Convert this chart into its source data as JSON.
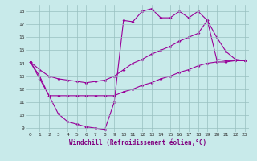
{
  "xlabel": "Windchill (Refroidissement éolien,°C)",
  "background_color": "#c8eaea",
  "line_color": "#990099",
  "grid_color": "#a0c8c8",
  "xmin": 0,
  "xmax": 23,
  "ymin": 9,
  "ymax": 18,
  "hours": [
    0,
    1,
    2,
    3,
    4,
    5,
    6,
    7,
    8,
    9,
    10,
    11,
    12,
    13,
    14,
    15,
    16,
    17,
    18,
    19,
    20,
    21,
    22,
    23
  ],
  "line_top": [
    14.1,
    12.8,
    11.5,
    10.1,
    9.5,
    9.3,
    9.1,
    9.0,
    8.9,
    11.0,
    17.3,
    17.2,
    18.0,
    18.2,
    17.5,
    17.5,
    18.0,
    17.5,
    18.0,
    17.3,
    16.0,
    14.9,
    14.3,
    14.2
  ],
  "line_upper_diag": [
    14.1,
    13.5,
    13.0,
    12.8,
    12.7,
    12.6,
    12.5,
    12.6,
    12.7,
    13.0,
    13.5,
    14.0,
    14.3,
    14.7,
    15.0,
    15.3,
    15.7,
    16.0,
    16.3,
    17.3,
    14.3,
    14.2,
    14.2,
    14.2
  ],
  "line_lower_diag": [
    14.1,
    13.0,
    11.5,
    11.5,
    11.5,
    11.5,
    11.5,
    11.5,
    11.5,
    11.5,
    11.8,
    12.0,
    12.3,
    12.5,
    12.8,
    13.0,
    13.3,
    13.5,
    13.8,
    14.0,
    14.1,
    14.1,
    14.2,
    14.2
  ]
}
